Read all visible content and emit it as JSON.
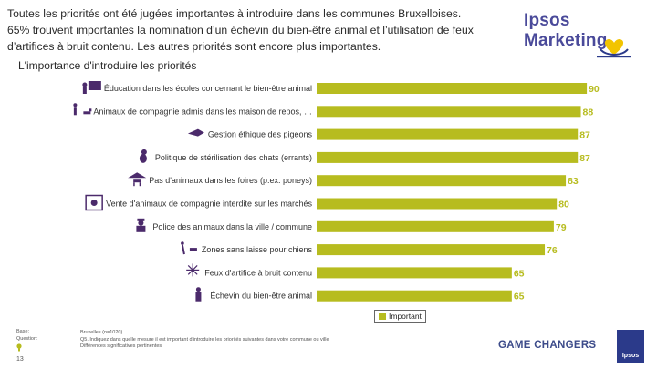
{
  "header": {
    "headline_lines": [
      "Toutes les priorités ont été jugées importantes à introduire dans les communes Bruxelloises.",
      "65% trouvent importantes la nomination d’un échevin du bien-être animal et l’utilisation de feux",
      "d’artifices à bruit contenu. Les autres priorités sont encore plus importantes."
    ],
    "brand": "Ipsos Marketing",
    "subtitle": "L'importance d'introduire les priorités"
  },
  "chart_data": {
    "type": "bar",
    "orientation": "horizontal",
    "title": "L'importance d'introduire les priorités",
    "categories": [
      "Éducation dans les écoles concernant le bien-être animal",
      "Animaux de compagnie admis dans les maison de repos, …",
      "Gestion éthique des pigeons",
      "Politique de stérilisation des chats (errants)",
      "Pas d'animaux dans les foires (p.ex. poneys)",
      "Vente d'animaux de compagnie interdite sur les marchés",
      "Police des animaux dans la ville / commune",
      "Zones sans laisse pour chiens",
      "Feux d'artifice à bruit contenu",
      "Échevin du bien-être animal"
    ],
    "series": [
      {
        "name": "Important",
        "values": [
          90,
          88,
          87,
          87,
          83,
          80,
          79,
          76,
          65,
          65
        ]
      }
    ],
    "xlim": [
      0,
      100
    ],
    "legend": "bottom",
    "icons": [
      "teacher-board-icon",
      "person-with-dog-icon",
      "pigeon-icon",
      "cat-icon",
      "pony-tent-icon",
      "pet-shop-icon",
      "police-officer-icon",
      "dog-running-icon",
      "fireworks-icon",
      "official-person-icon"
    ],
    "bar_color": "#b7bc1f",
    "value_color": "#b7bc1f"
  },
  "legend": {
    "label": "Important"
  },
  "footer": {
    "base_label": "Base:",
    "question_label": "Question:",
    "base_text": "Bruxelles (n=1020)",
    "question_text": "Q5. Indiquez dans quelle mesure il est important d'introduire les priorités suivantes dans votre commune ou ville",
    "note_text": "Différences significatives pertinentes",
    "page_number": "13",
    "tagline": "GAME CHANGERS",
    "badge": "Ipsos"
  },
  "colors": {
    "accent": "#b7bc1f",
    "brand": "#4a4a9a",
    "icon": "#4b2a6b"
  }
}
